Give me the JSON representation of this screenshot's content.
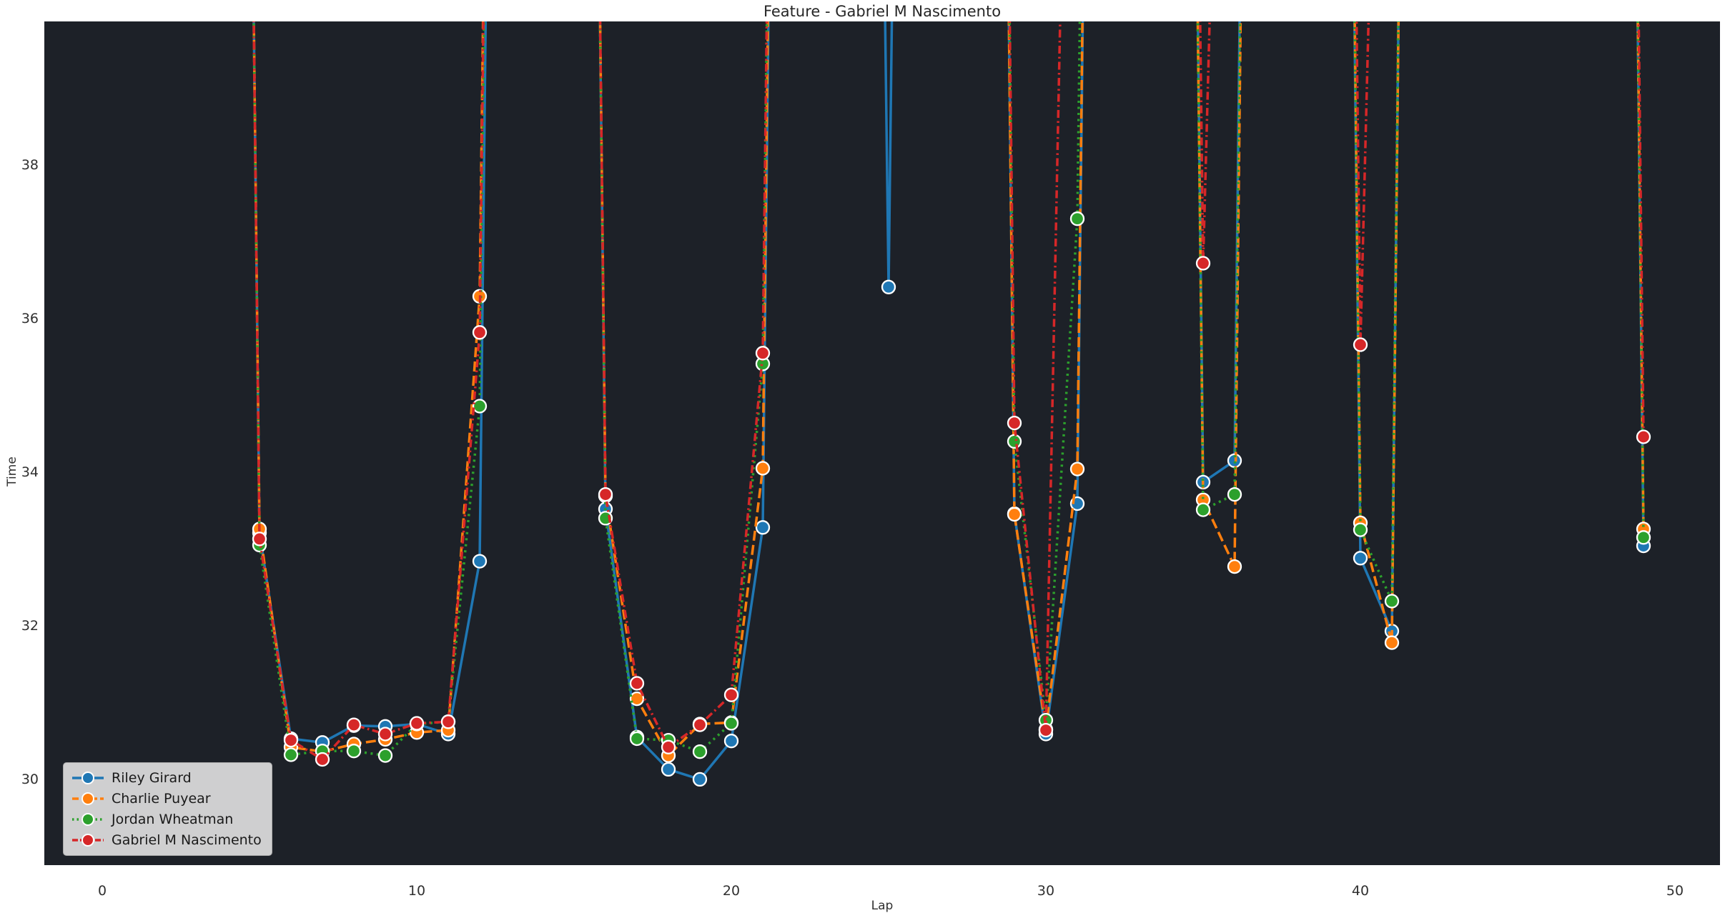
{
  "chart_data": {
    "type": "line",
    "title": "Feature - Gabriel M Nascimento",
    "xlabel": "Lap",
    "ylabel": "Time",
    "x_ticks": [
      0,
      10,
      20,
      30,
      40,
      50
    ],
    "y_ticks": [
      30,
      32,
      34,
      36,
      38
    ],
    "xlim": [
      -1.84,
      51.4
    ],
    "ylim": [
      28.9,
      39.88
    ],
    "grid": false,
    "legend_position": "lower-left",
    "off_scale_sentinel": 70,
    "series": [
      {
        "name": "Riley Girard",
        "color": "#1f77b4",
        "style": "solid",
        "x": [
          0,
          1,
          2,
          3,
          4,
          5,
          6,
          7,
          8,
          9,
          10,
          11,
          12,
          13,
          14,
          15,
          16,
          17,
          18,
          19,
          20,
          21,
          22,
          23,
          24,
          25,
          26,
          27,
          28,
          29,
          30,
          31,
          32,
          33,
          34,
          35,
          36,
          37,
          38,
          39,
          40,
          41,
          42,
          43,
          44,
          45,
          46,
          47,
          48,
          49
        ],
        "y": [
          70,
          70,
          70,
          70,
          70,
          33.22,
          30.54,
          30.49,
          30.71,
          30.7,
          30.73,
          30.6,
          32.85,
          70,
          70,
          70,
          33.53,
          30.56,
          30.14,
          30.01,
          30.51,
          33.29,
          70,
          70,
          68,
          36.42,
          70,
          70,
          70,
          33.47,
          30.6,
          33.6,
          70,
          70,
          70,
          33.88,
          34.16,
          70,
          70,
          70,
          32.89,
          31.94,
          70,
          70,
          70,
          70,
          70,
          70,
          70,
          33.05
        ]
      },
      {
        "name": "Charlie Puyear",
        "color": "#ff7f0e",
        "style": "dashed",
        "x": [
          0,
          1,
          2,
          3,
          4,
          5,
          6,
          7,
          8,
          9,
          10,
          11,
          12,
          13,
          14,
          15,
          16,
          17,
          18,
          19,
          20,
          21,
          22,
          23,
          24,
          25,
          26,
          27,
          28,
          29,
          30,
          31,
          32,
          33,
          34,
          35,
          36,
          37,
          38,
          39,
          40,
          41,
          42,
          43,
          44,
          45,
          46,
          47,
          48,
          49
        ],
        "y": [
          70,
          70,
          70,
          70,
          70,
          33.27,
          30.43,
          30.37,
          30.47,
          30.53,
          30.62,
          30.65,
          36.3,
          70,
          70,
          70,
          33.7,
          31.06,
          30.32,
          30.73,
          30.75,
          34.06,
          70,
          70,
          70,
          70,
          70,
          70,
          70,
          33.46,
          30.66,
          34.05,
          70,
          70,
          70,
          33.65,
          32.78,
          70,
          70,
          70,
          33.35,
          31.79,
          70,
          70,
          70,
          70,
          70,
          70,
          70,
          33.27
        ]
      },
      {
        "name": "Jordan Wheatman",
        "color": "#2ca02c",
        "style": "dotted",
        "x": [
          0,
          1,
          2,
          3,
          4,
          5,
          6,
          7,
          8,
          9,
          10,
          11,
          12,
          13,
          14,
          15,
          16,
          17,
          18,
          19,
          20,
          21,
          22,
          23,
          24,
          25,
          26,
          27,
          28,
          29,
          30,
          31,
          32,
          33,
          34,
          35,
          36,
          37,
          38,
          39,
          40,
          41,
          42,
          43,
          44,
          45,
          46,
          47,
          48,
          49
        ],
        "y": [
          70,
          70,
          70,
          70,
          70,
          33.06,
          30.33,
          30.38,
          30.38,
          30.32,
          30.73,
          30.76,
          34.87,
          70,
          70,
          70,
          33.41,
          30.54,
          30.52,
          30.37,
          30.74,
          35.42,
          70,
          70,
          70,
          70,
          70,
          70,
          70,
          34.41,
          30.78,
          37.31,
          70,
          70,
          70,
          33.52,
          33.72,
          70,
          70,
          70,
          33.26,
          32.33,
          70,
          70,
          70,
          70,
          70,
          70,
          70,
          33.16
        ]
      },
      {
        "name": "Gabriel M Nascimento",
        "color": "#d62728",
        "style": "dashdot",
        "x": [
          0,
          1,
          2,
          3,
          4,
          5,
          6,
          7,
          8,
          9,
          10,
          11,
          12,
          13,
          14,
          15,
          16,
          17,
          18,
          19,
          20,
          21,
          22,
          23,
          24,
          25,
          26,
          27,
          28,
          29,
          30,
          31,
          32,
          33,
          34,
          35,
          36,
          37,
          38,
          39,
          40,
          41,
          42,
          43,
          44,
          45,
          46,
          47,
          48,
          49
        ],
        "y": [
          70,
          70,
          70,
          70,
          70,
          33.14,
          30.52,
          30.27,
          30.72,
          30.6,
          30.74,
          30.76,
          35.83,
          70,
          70,
          70,
          33.72,
          31.26,
          30.43,
          30.72,
          31.11,
          35.56,
          70,
          70,
          70,
          70,
          70,
          70,
          70,
          34.65,
          30.65,
          51,
          70,
          70,
          70,
          36.73,
          52,
          70,
          70,
          70,
          35.67,
          52,
          70,
          70,
          70,
          70,
          70,
          70,
          70,
          34.47
        ]
      }
    ]
  },
  "colors": {
    "figure_background": "#ffffff",
    "plot_background": "#1d2128",
    "text": "#303030",
    "legend_background": "#d9d9d9",
    "marker_edge": "#ffffff"
  }
}
